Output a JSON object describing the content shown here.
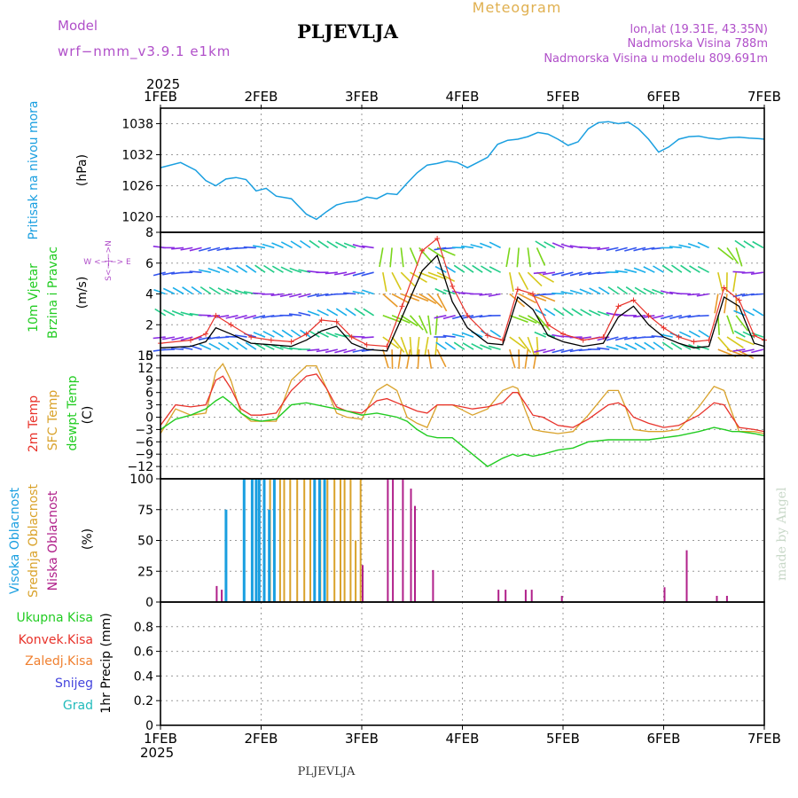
{
  "header": {
    "model_label": "Model",
    "model_name": "wrf−nmm_v3.9.1  e1km",
    "station": "PLJEVLJA",
    "meteogram": "Meteogram",
    "lonlat": "lon,lat (19.31E, 43.35N)",
    "altitude": "Nadmorska Visina 788m",
    "model_altitude": "Nadmorska Visina u modelu 809.691m",
    "year_top": "2025",
    "year_bottom": "2025",
    "footer_station": "PLJEVLJA",
    "made_by": "made by Angel"
  },
  "x_axis": {
    "labels": [
      "1FEB",
      "2FEB",
      "3FEB",
      "4FEB",
      "5FEB",
      "6FEB",
      "7FEB"
    ]
  },
  "colors": {
    "pressure": "#1a9fe0",
    "wind_speed": "#000000",
    "wind_gust": "#e8322a",
    "temp_2m": "#e8322a",
    "temp_sfc": "#d9a22a",
    "dewpoint": "#22cc22",
    "cloud_high": "#1a9fe0",
    "cloud_mid": "#d9a22a",
    "cloud_low": "#b0208a",
    "label_purple": "#b04fc9",
    "label_gold": "#e0b050"
  },
  "panels": {
    "pressure": {
      "label": "Pritisak na nivou mora",
      "unit": "(hPa)",
      "ticks": [
        "1038",
        "1032",
        "1026",
        "1020"
      ]
    },
    "wind": {
      "label1": "10m Vjetar",
      "label2": "Brzina i Pravac",
      "unit": "(m/s)",
      "compass": "W <−|−> E",
      "compass_v": "S<−|−>N",
      "ticks": [
        "8",
        "6",
        "4",
        "2",
        "0"
      ]
    },
    "temperature": {
      "label_2m": "2m Temp",
      "label_sfc": "SFC Temp",
      "label_dew": "dewpt Temp",
      "unit": "(C)",
      "ticks": [
        "15",
        "12",
        "9",
        "6",
        "3",
        "0",
        "−3",
        "−6",
        "−9",
        "−12"
      ]
    },
    "cloud": {
      "label_high": "Visoka Oblacnost",
      "label_mid": "Srednja Oblacnost",
      "label_low": "Niska Oblacnost",
      "unit": "(%)",
      "ticks": [
        "100",
        "75",
        "50",
        "25",
        "0"
      ]
    },
    "precip": {
      "label_total": "Ukupna Kisa",
      "label_conv": "Konvek.Kisa",
      "label_frz": "Zaledj.Kisa",
      "label_snow": "Snijeg",
      "label_grad": "Grad",
      "unit": "1hr Precip (mm)",
      "ticks": [
        "0.8",
        "0.6",
        "0.4",
        "0.2",
        "0"
      ]
    }
  },
  "chart_data": [
    {
      "type": "line",
      "name": "pressure",
      "ylim": [
        1017,
        1041
      ],
      "x": [
        0,
        0.2,
        0.35,
        0.45,
        0.55,
        0.65,
        0.75,
        0.85,
        0.95,
        1.05,
        1.15,
        1.3,
        1.45,
        1.55,
        1.65,
        1.75,
        1.85,
        1.95,
        2.05,
        2.15,
        2.25,
        2.35,
        2.45,
        2.55,
        2.65,
        2.75,
        2.85,
        2.95,
        3.05,
        3.15,
        3.25,
        3.35,
        3.45,
        3.55,
        3.65,
        3.75,
        3.85,
        3.95,
        4.05,
        4.15,
        4.25,
        4.35,
        4.45,
        4.55,
        4.65,
        4.75,
        4.85,
        4.95,
        5.05,
        5.15,
        5.25,
        5.35,
        5.45,
        5.55,
        5.65,
        5.75,
        5.85,
        5.95,
        6.0
      ],
      "values": [
        1029.5,
        1030.5,
        1029.0,
        1027.0,
        1026.0,
        1027.3,
        1027.6,
        1027.2,
        1025.0,
        1025.5,
        1024.0,
        1023.5,
        1020.5,
        1019.5,
        1021.0,
        1022.3,
        1022.8,
        1023.0,
        1023.8,
        1023.5,
        1024.5,
        1024.3,
        1026.5,
        1028.5,
        1030.0,
        1030.3,
        1030.8,
        1030.5,
        1029.5,
        1030.5,
        1031.5,
        1034.0,
        1034.8,
        1035.0,
        1035.5,
        1036.3,
        1036.0,
        1035.0,
        1033.8,
        1034.5,
        1037.0,
        1038.2,
        1038.4,
        1038.0,
        1038.3,
        1037.0,
        1035.0,
        1032.5,
        1033.5,
        1035.0,
        1035.5,
        1035.6,
        1035.2,
        1035.0,
        1035.3,
        1035.4,
        1035.2,
        1035.1,
        1035.0
      ],
      "xlabel": "",
      "ylabel": "(hPa)"
    },
    {
      "type": "line",
      "name": "wind",
      "ylim": [
        0,
        8
      ],
      "x": [
        0,
        0.3,
        0.45,
        0.55,
        0.7,
        0.9,
        1.1,
        1.3,
        1.45,
        1.6,
        1.75,
        1.9,
        2.05,
        2.25,
        2.4,
        2.6,
        2.75,
        2.9,
        3.05,
        3.25,
        3.4,
        3.55,
        3.7,
        3.85,
        4.0,
        4.2,
        4.4,
        4.55,
        4.7,
        4.85,
        5.0,
        5.15,
        5.3,
        5.45,
        5.6,
        5.75,
        5.9,
        6.0
      ],
      "speed": [
        0.5,
        0.6,
        0.9,
        1.8,
        1.4,
        0.8,
        0.7,
        0.6,
        1.0,
        1.6,
        1.9,
        0.8,
        0.4,
        0.3,
        2.5,
        5.5,
        6.5,
        3.5,
        1.8,
        0.8,
        0.7,
        3.8,
        3.0,
        1.3,
        0.9,
        0.6,
        0.8,
        2.5,
        3.2,
        2.0,
        1.2,
        0.8,
        0.5,
        0.6,
        3.8,
        3.2,
        0.8,
        0.6
      ],
      "gust": [
        0.8,
        1.0,
        1.4,
        2.6,
        2.0,
        1.2,
        1.0,
        0.9,
        1.4,
        2.3,
        2.2,
        1.2,
        0.7,
        0.6,
        3.2,
        6.8,
        7.6,
        4.5,
        2.6,
        1.3,
        1.0,
        4.3,
        4.0,
        2.0,
        1.4,
        1.0,
        1.2,
        3.2,
        3.6,
        2.6,
        1.8,
        1.2,
        0.9,
        1.0,
        4.4,
        3.6,
        1.3,
        1.0
      ],
      "xlabel": "",
      "ylabel": "(m/s)"
    },
    {
      "type": "line",
      "name": "temperature",
      "ylim": [
        -15,
        15
      ],
      "x": [
        0,
        0.15,
        0.3,
        0.45,
        0.55,
        0.62,
        0.7,
        0.8,
        0.9,
        1.0,
        1.15,
        1.3,
        1.45,
        1.55,
        1.65,
        1.75,
        1.85,
        2.0,
        2.15,
        2.25,
        2.35,
        2.45,
        2.55,
        2.65,
        2.75,
        2.9,
        3.1,
        3.25,
        3.4,
        3.5,
        3.55,
        3.62,
        3.7,
        3.8,
        3.95,
        4.1,
        4.25,
        4.45,
        4.55,
        4.62,
        4.7,
        4.85,
        5.0,
        5.15,
        5.35,
        5.5,
        5.6,
        5.68,
        5.75,
        5.9,
        6.0
      ],
      "t2m": [
        -2.0,
        3.0,
        2.5,
        3.0,
        9.0,
        10.0,
        7.0,
        2.0,
        0.5,
        0.5,
        1.0,
        6.5,
        10.0,
        10.5,
        7.0,
        2.5,
        1.5,
        1.0,
        4.0,
        4.5,
        3.5,
        2.5,
        1.5,
        1.0,
        3.0,
        3.0,
        2.0,
        2.5,
        3.5,
        6.0,
        6.0,
        3.5,
        0.5,
        0.0,
        -2.0,
        -2.5,
        -0.5,
        3.0,
        3.5,
        2.5,
        0.0,
        -1.5,
        -2.5,
        -2.0,
        0.5,
        3.5,
        3.0,
        0.0,
        -2.5,
        -3.0,
        -3.5
      ],
      "tsfc": [
        -4.0,
        2.0,
        0.5,
        1.0,
        11.0,
        13.0,
        9.0,
        1.0,
        -1.0,
        -1.0,
        -1.0,
        9.0,
        12.5,
        12.5,
        7.0,
        1.0,
        0.0,
        -0.5,
        6.5,
        8.0,
        6.5,
        0.0,
        -1.5,
        -2.5,
        3.0,
        3.0,
        0.5,
        2.0,
        6.5,
        7.5,
        7.0,
        2.0,
        -3.0,
        -3.5,
        -4.0,
        -3.5,
        0.5,
        6.5,
        6.5,
        2.5,
        -3.0,
        -3.5,
        -3.5,
        -3.0,
        2.5,
        7.5,
        6.5,
        1.0,
        -3.5,
        -3.5,
        -4.0
      ],
      "dew": [
        -3.0,
        -0.5,
        0.5,
        2.0,
        4.0,
        5.0,
        3.5,
        1.0,
        -0.5,
        -1.0,
        -0.5,
        3.0,
        3.5,
        3.0,
        2.5,
        2.0,
        1.5,
        0.5,
        1.0,
        0.5,
        0.0,
        -1.0,
        -3.0,
        -4.5,
        -5.0,
        -5.0,
        -9.0,
        -12.0,
        -10.0,
        -9.0,
        -9.5,
        -9.0,
        -9.5,
        -9.0,
        -8.0,
        -7.5,
        -6.0,
        -5.5,
        -5.5,
        -5.5,
        -5.5,
        -5.5,
        -5.0,
        -4.5,
        -3.5,
        -2.5,
        -3.0,
        -3.5,
        -3.5,
        -4.0,
        -4.5
      ],
      "xlabel": "",
      "ylabel": "(C)"
    },
    {
      "type": "bar",
      "name": "cloud",
      "ylim": [
        0,
        100
      ],
      "high": [
        [
          0.62,
          75
        ],
        [
          0.8,
          100
        ],
        [
          0.88,
          100
        ],
        [
          0.92,
          100
        ],
        [
          0.95,
          100
        ],
        [
          1.0,
          100
        ],
        [
          1.05,
          75
        ],
        [
          1.1,
          100
        ],
        [
          1.5,
          100
        ],
        [
          1.55,
          100
        ],
        [
          1.6,
          100
        ]
      ],
      "mid": [
        [
          0.82,
          100
        ],
        [
          0.9,
          100
        ],
        [
          0.97,
          100
        ],
        [
          1.08,
          100
        ],
        [
          1.12,
          100
        ],
        [
          1.18,
          100
        ],
        [
          1.22,
          100
        ],
        [
          1.28,
          100
        ],
        [
          1.35,
          100
        ],
        [
          1.42,
          100
        ],
        [
          1.48,
          100
        ],
        [
          1.58,
          100
        ],
        [
          1.65,
          100
        ],
        [
          1.72,
          100
        ],
        [
          1.78,
          100
        ],
        [
          1.82,
          100
        ],
        [
          1.88,
          100
        ],
        [
          1.93,
          50
        ],
        [
          1.98,
          100
        ]
      ],
      "low": [
        [
          0.55,
          13
        ],
        [
          0.6,
          10
        ],
        [
          2.0,
          30
        ],
        [
          2.25,
          100
        ],
        [
          2.3,
          100
        ],
        [
          2.4,
          100
        ],
        [
          2.48,
          92
        ],
        [
          2.52,
          78
        ],
        [
          2.7,
          26
        ],
        [
          3.35,
          10
        ],
        [
          3.42,
          10
        ],
        [
          3.62,
          10
        ],
        [
          3.68,
          10
        ],
        [
          3.98,
          5
        ],
        [
          5.0,
          12
        ],
        [
          5.22,
          42
        ],
        [
          5.52,
          5
        ],
        [
          5.62,
          5
        ]
      ],
      "xlabel": "",
      "ylabel": "(%)"
    },
    {
      "type": "bar",
      "name": "precip",
      "ylim": [
        0,
        1
      ],
      "xlabel": "",
      "ylabel": "1hr Precip (mm)"
    }
  ]
}
